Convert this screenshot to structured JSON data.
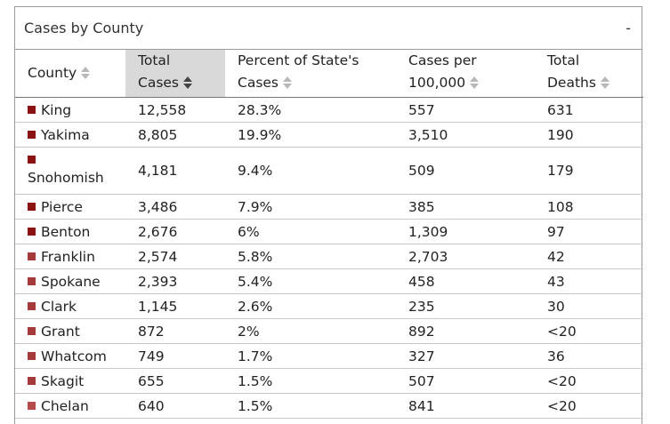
{
  "panel": {
    "title": "Cases by County",
    "collapse_label": "-"
  },
  "columns": [
    {
      "line1": "County",
      "line2": "",
      "sort": "both"
    },
    {
      "line1": "Total",
      "line2": "Cases",
      "sort": "desc-active"
    },
    {
      "line1": "Percent of State's",
      "line2": "Cases",
      "sort": "both"
    },
    {
      "line1": "Cases per",
      "line2": "100,000",
      "sort": "both"
    },
    {
      "line1": "Total",
      "line2": "Deaths",
      "sort": "both"
    }
  ],
  "colors": {
    "dark_red": "#8b1212",
    "mid_red": "#a53a3a",
    "light_red": "#b54a4a",
    "sort_inactive": "#b8b8b8",
    "sort_active": "#444444"
  },
  "rows": [
    {
      "county": "King",
      "total": "12,558",
      "percent": "28.3%",
      "per100k": "557",
      "deaths": "631",
      "color": "#8b1212"
    },
    {
      "county": "Yakima",
      "total": "8,805",
      "percent": "19.9%",
      "per100k": "3,510",
      "deaths": "190",
      "color": "#8b1212"
    },
    {
      "county": "Snohomish",
      "total": "4,181",
      "percent": "9.4%",
      "per100k": "509",
      "deaths": "179",
      "color": "#8b1212"
    },
    {
      "county": "Pierce",
      "total": "3,486",
      "percent": "7.9%",
      "per100k": "385",
      "deaths": "108",
      "color": "#8b1212"
    },
    {
      "county": "Benton",
      "total": "2,676",
      "percent": "6%",
      "per100k": "1,309",
      "deaths": "97",
      "color": "#8b1212"
    },
    {
      "county": "Franklin",
      "total": "2,574",
      "percent": "5.8%",
      "per100k": "2,703",
      "deaths": "42",
      "color": "#a53a3a"
    },
    {
      "county": "Spokane",
      "total": "2,393",
      "percent": "5.4%",
      "per100k": "458",
      "deaths": "43",
      "color": "#a53a3a"
    },
    {
      "county": "Clark",
      "total": "1,145",
      "percent": "2.6%",
      "per100k": "235",
      "deaths": "30",
      "color": "#a53a3a"
    },
    {
      "county": "Grant",
      "total": "872",
      "percent": "2%",
      "per100k": "892",
      "deaths": "<20",
      "color": "#a53a3a"
    },
    {
      "county": "Whatcom",
      "total": "749",
      "percent": "1.7%",
      "per100k": "327",
      "deaths": "36",
      "color": "#a53a3a"
    },
    {
      "county": "Skagit",
      "total": "655",
      "percent": "1.5%",
      "per100k": "507",
      "deaths": "<20",
      "color": "#a53a3a"
    },
    {
      "county": "Chelan",
      "total": "640",
      "percent": "1.5%",
      "per100k": "841",
      "deaths": "<20",
      "color": "#b54a4a"
    }
  ]
}
